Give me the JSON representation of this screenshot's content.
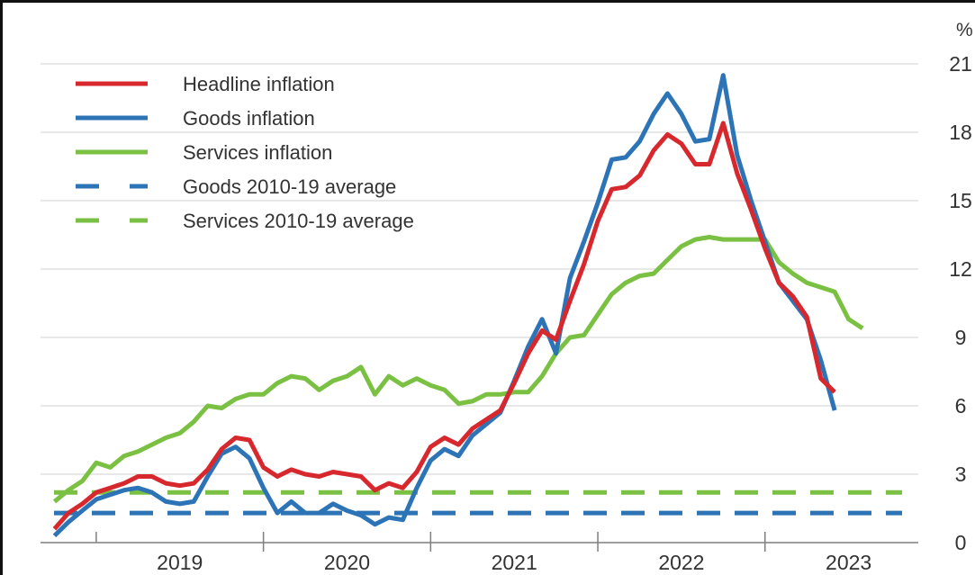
{
  "chart_data": {
    "type": "line",
    "title": "",
    "xlabel": "",
    "ylabel": "",
    "unit": "%",
    "ylim": [
      0,
      21
    ],
    "y_ticks": [
      "0",
      "3",
      "6",
      "9",
      "12",
      "15",
      "18",
      "21"
    ],
    "x_ticks": [
      "2019",
      "2020",
      "2021",
      "2022",
      "2023"
    ],
    "xlim": [
      "2018-09",
      "2023-12"
    ],
    "grid": true,
    "legend_position": "top-left",
    "colors": {
      "headline": "#d7282e",
      "goods": "#2d74b7",
      "services": "#7ac143"
    },
    "x": [
      "2018-10",
      "2018-11",
      "2018-12",
      "2019-01",
      "2019-02",
      "2019-03",
      "2019-04",
      "2019-05",
      "2019-06",
      "2019-07",
      "2019-08",
      "2019-09",
      "2019-10",
      "2019-11",
      "2019-12",
      "2020-01",
      "2020-02",
      "2020-03",
      "2020-04",
      "2020-05",
      "2020-06",
      "2020-07",
      "2020-08",
      "2020-09",
      "2020-10",
      "2020-11",
      "2020-12",
      "2021-01",
      "2021-02",
      "2021-03",
      "2021-04",
      "2021-05",
      "2021-06",
      "2021-07",
      "2021-08",
      "2021-09",
      "2021-10",
      "2021-11",
      "2021-12",
      "2022-01",
      "2022-02",
      "2022-03",
      "2022-04",
      "2022-05",
      "2022-06",
      "2022-07",
      "2022-08",
      "2022-09",
      "2022-10",
      "2022-11",
      "2022-12",
      "2023-01",
      "2023-02",
      "2023-03",
      "2023-04",
      "2023-05",
      "2023-06",
      "2023-07",
      "2023-08",
      "2023-09",
      "2023-10"
    ],
    "series": [
      {
        "name": "Headline inflation",
        "key": "headline",
        "style": "solid",
        "values": [
          0.6,
          1.3,
          1.7,
          2.2,
          2.4,
          2.6,
          2.9,
          2.9,
          2.6,
          2.5,
          2.6,
          3.2,
          4.1,
          4.6,
          4.5,
          3.3,
          2.9,
          3.2,
          3.0,
          2.9,
          3.1,
          3.0,
          2.9,
          2.3,
          2.6,
          2.4,
          3.1,
          4.2,
          4.6,
          4.3,
          5.0,
          5.4,
          5.8,
          7.0,
          8.3,
          9.3,
          8.9,
          10.6,
          12.2,
          14.1,
          15.5,
          15.6,
          16.1,
          17.2,
          17.9,
          17.5,
          16.6,
          16.6,
          18.4,
          16.2,
          14.6,
          12.9,
          11.4,
          10.8,
          9.9,
          7.2,
          6.6,
          null,
          null,
          null,
          null
        ]
      },
      {
        "name": "Goods inflation",
        "key": "goods",
        "style": "solid",
        "values": [
          0.3,
          0.9,
          1.4,
          1.9,
          2.1,
          2.3,
          2.4,
          2.2,
          1.8,
          1.7,
          1.8,
          2.9,
          3.9,
          4.2,
          3.7,
          2.4,
          1.3,
          1.8,
          1.3,
          1.3,
          1.7,
          1.4,
          1.2,
          0.8,
          1.1,
          1.0,
          2.4,
          3.6,
          4.1,
          3.8,
          4.7,
          5.2,
          5.7,
          7.1,
          8.6,
          9.8,
          8.3,
          11.6,
          13.2,
          14.9,
          16.8,
          16.9,
          17.6,
          18.8,
          19.7,
          18.8,
          17.6,
          17.7,
          20.5,
          17.0,
          15.0,
          13.2,
          11.4,
          10.6,
          9.8,
          8.0,
          5.8,
          null,
          null,
          null,
          null
        ]
      },
      {
        "name": "Services inflation",
        "key": "services",
        "style": "solid",
        "values": [
          1.8,
          2.3,
          2.7,
          3.5,
          3.3,
          3.8,
          4.0,
          4.3,
          4.6,
          4.8,
          5.3,
          6.0,
          5.9,
          6.3,
          6.5,
          6.5,
          7.0,
          7.3,
          7.2,
          6.7,
          7.1,
          7.3,
          7.7,
          6.5,
          7.3,
          6.9,
          7.2,
          6.9,
          6.7,
          6.1,
          6.2,
          6.5,
          6.5,
          6.6,
          6.6,
          7.3,
          8.3,
          9.0,
          9.1,
          10.0,
          10.9,
          11.4,
          11.7,
          11.8,
          12.4,
          13.0,
          13.3,
          13.4,
          13.3,
          13.3,
          13.3,
          13.3,
          12.3,
          11.8,
          11.4,
          11.2,
          11.0,
          9.8,
          9.4,
          null,
          null
        ]
      },
      {
        "name": "Goods 2010-19 average",
        "key": "goods",
        "style": "dashed",
        "constant": 1.3
      },
      {
        "name": "Services 2010-19 average",
        "key": "services",
        "style": "dashed",
        "constant": 2.2
      }
    ]
  }
}
